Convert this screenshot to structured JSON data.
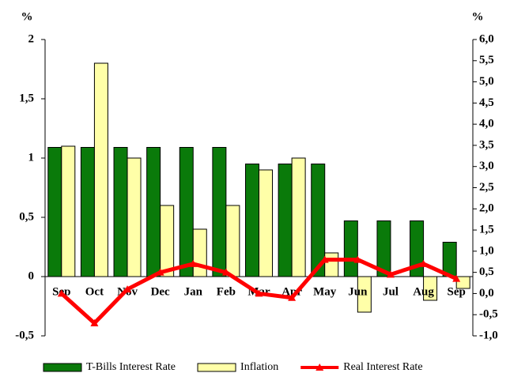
{
  "chart_data": {
    "type": "bar-line",
    "y_label": "%",
    "y2_label": "%",
    "categories": [
      "Sep",
      "Oct",
      "Nov",
      "Dec",
      "Jan",
      "Feb",
      "Mar",
      "Apr",
      "May",
      "Jun",
      "Jul",
      "Aug",
      "Sep"
    ],
    "series": [
      {
        "name": "T-Bills Interest Rate",
        "type": "bar",
        "color": "#0a7a0a",
        "values": [
          1.09,
          1.09,
          1.09,
          1.09,
          1.09,
          1.09,
          0.95,
          0.95,
          0.95,
          0.47,
          0.47,
          0.47,
          0.29
        ]
      },
      {
        "name": "Inflation",
        "type": "bar",
        "color": "#ffffa8",
        "values": [
          1.1,
          1.8,
          1.0,
          0.6,
          0.4,
          0.6,
          0.9,
          1.0,
          0.2,
          -0.3,
          0,
          -0.2,
          -0.1
        ]
      },
      {
        "name": "Real Interest Rate",
        "type": "line",
        "axis": "y2",
        "color": "#ff0000",
        "values": [
          0.0,
          -0.7,
          0.1,
          0.5,
          0.7,
          0.5,
          0.0,
          -0.1,
          0.8,
          0.8,
          0.45,
          0.7,
          0.35
        ]
      }
    ],
    "ylim": [
      -0.5,
      2
    ],
    "yticks": [
      {
        "value": -0.5,
        "label": "-0,5"
      },
      0,
      {
        "value": 0.5,
        "label": "0,5"
      },
      1,
      {
        "value": 1.5,
        "label": "1,5"
      },
      2
    ],
    "y2lim": [
      -1,
      6
    ],
    "y2ticks": [
      {
        "value": -1,
        "label": "-1,0"
      },
      {
        "value": -0.5,
        "label": "-0,5"
      },
      {
        "value": 0,
        "label": "0,0"
      },
      {
        "value": 0.5,
        "label": "0,5"
      },
      {
        "value": 1,
        "label": "1,0"
      },
      {
        "value": 1.5,
        "label": "1,5"
      },
      {
        "value": 2,
        "label": "2,0"
      },
      {
        "value": 2.5,
        "label": "2,5"
      },
      {
        "value": 3,
        "label": "3,0"
      },
      {
        "value": 3.5,
        "label": "3,5"
      },
      {
        "value": 4,
        "label": "4,0"
      },
      {
        "value": 4.5,
        "label": "4,5"
      },
      {
        "value": 5,
        "label": "5,0"
      },
      {
        "value": 5.5,
        "label": "5,5"
      },
      {
        "value": 6,
        "label": "6,0"
      }
    ],
    "legend": "bottom"
  }
}
